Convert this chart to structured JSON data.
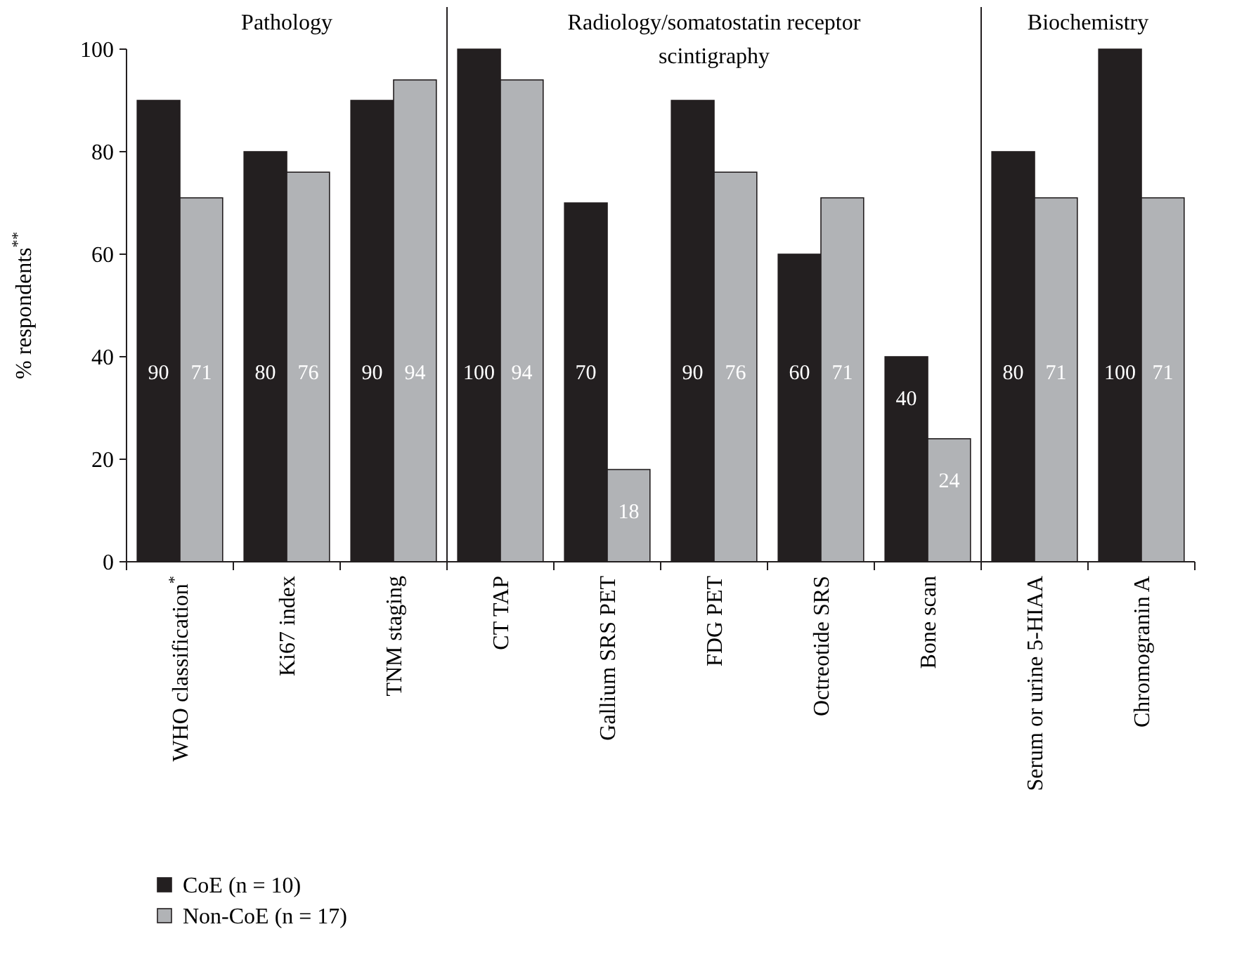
{
  "chart_data": {
    "type": "bar",
    "ylabel": "% respondents$^{**}$",
    "categories": [
      "WHO classification$^{*}$",
      "Ki67 index",
      "TNM staging",
      "CT TAP",
      "Gallium SRS PET",
      "FDG PET",
      "Octreotide SRS",
      "Bone scan",
      "Serum or urine 5-HIAA",
      "Chromogranin A"
    ],
    "series": [
      {
        "name": "CoE (n = 10)",
        "color": "#231f20",
        "values": [
          90,
          80,
          90,
          100,
          70,
          90,
          60,
          40,
          80,
          100
        ]
      },
      {
        "name": "Non-CoE (n = 17)",
        "color": "#b1b3b6",
        "values": [
          71,
          76,
          94,
          94,
          18,
          76,
          71,
          24,
          71,
          71
        ]
      }
    ],
    "ylim": [
      0,
      100
    ],
    "yticks": [
      0,
      20,
      40,
      60,
      80,
      100
    ],
    "annotations": [
      "Pathology",
      "Radiology/somatostatin receptor scintigraphy",
      "Biochemistry"
    ],
    "data_labels": true,
    "grid": false,
    "legend": "bottom left"
  }
}
